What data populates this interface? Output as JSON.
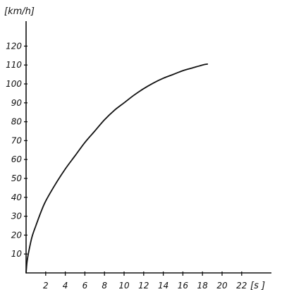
{
  "chart_data": {
    "type": "line",
    "title": "",
    "xlabel": "[s ]",
    "ylabel": "[km/h]",
    "xlim": [
      0,
      24
    ],
    "ylim": [
      0,
      130
    ],
    "grid": false,
    "x_ticks": [
      2,
      4,
      6,
      8,
      10,
      12,
      14,
      16,
      18,
      20,
      22
    ],
    "y_ticks": [
      10,
      20,
      30,
      40,
      50,
      60,
      70,
      80,
      90,
      100,
      110,
      120
    ],
    "x_tick_labels": [
      "2",
      "4",
      "6",
      "8",
      "10",
      "12",
      "14",
      "16",
      "18",
      "20",
      "22"
    ],
    "y_tick_labels": [
      "10",
      "20",
      "30",
      "40",
      "50",
      "60",
      "70",
      "80",
      "90",
      "100",
      "110",
      "120"
    ],
    "series": [
      {
        "x": [
          0,
          0.1,
          0.3,
          0.6,
          1,
          1.5,
          2,
          3,
          4,
          5,
          6,
          7,
          8,
          9,
          10,
          11,
          12,
          13,
          14,
          15,
          16,
          17,
          18,
          18.5
        ],
        "y": [
          0,
          6,
          12,
          19,
          25,
          32,
          38,
          47,
          55,
          62,
          69,
          75,
          81,
          86,
          90,
          94,
          97.5,
          100.5,
          103,
          105,
          107,
          108.5,
          110,
          110.5
        ]
      }
    ],
    "colors": {
      "axis": "#111111",
      "line": "#111111"
    }
  }
}
